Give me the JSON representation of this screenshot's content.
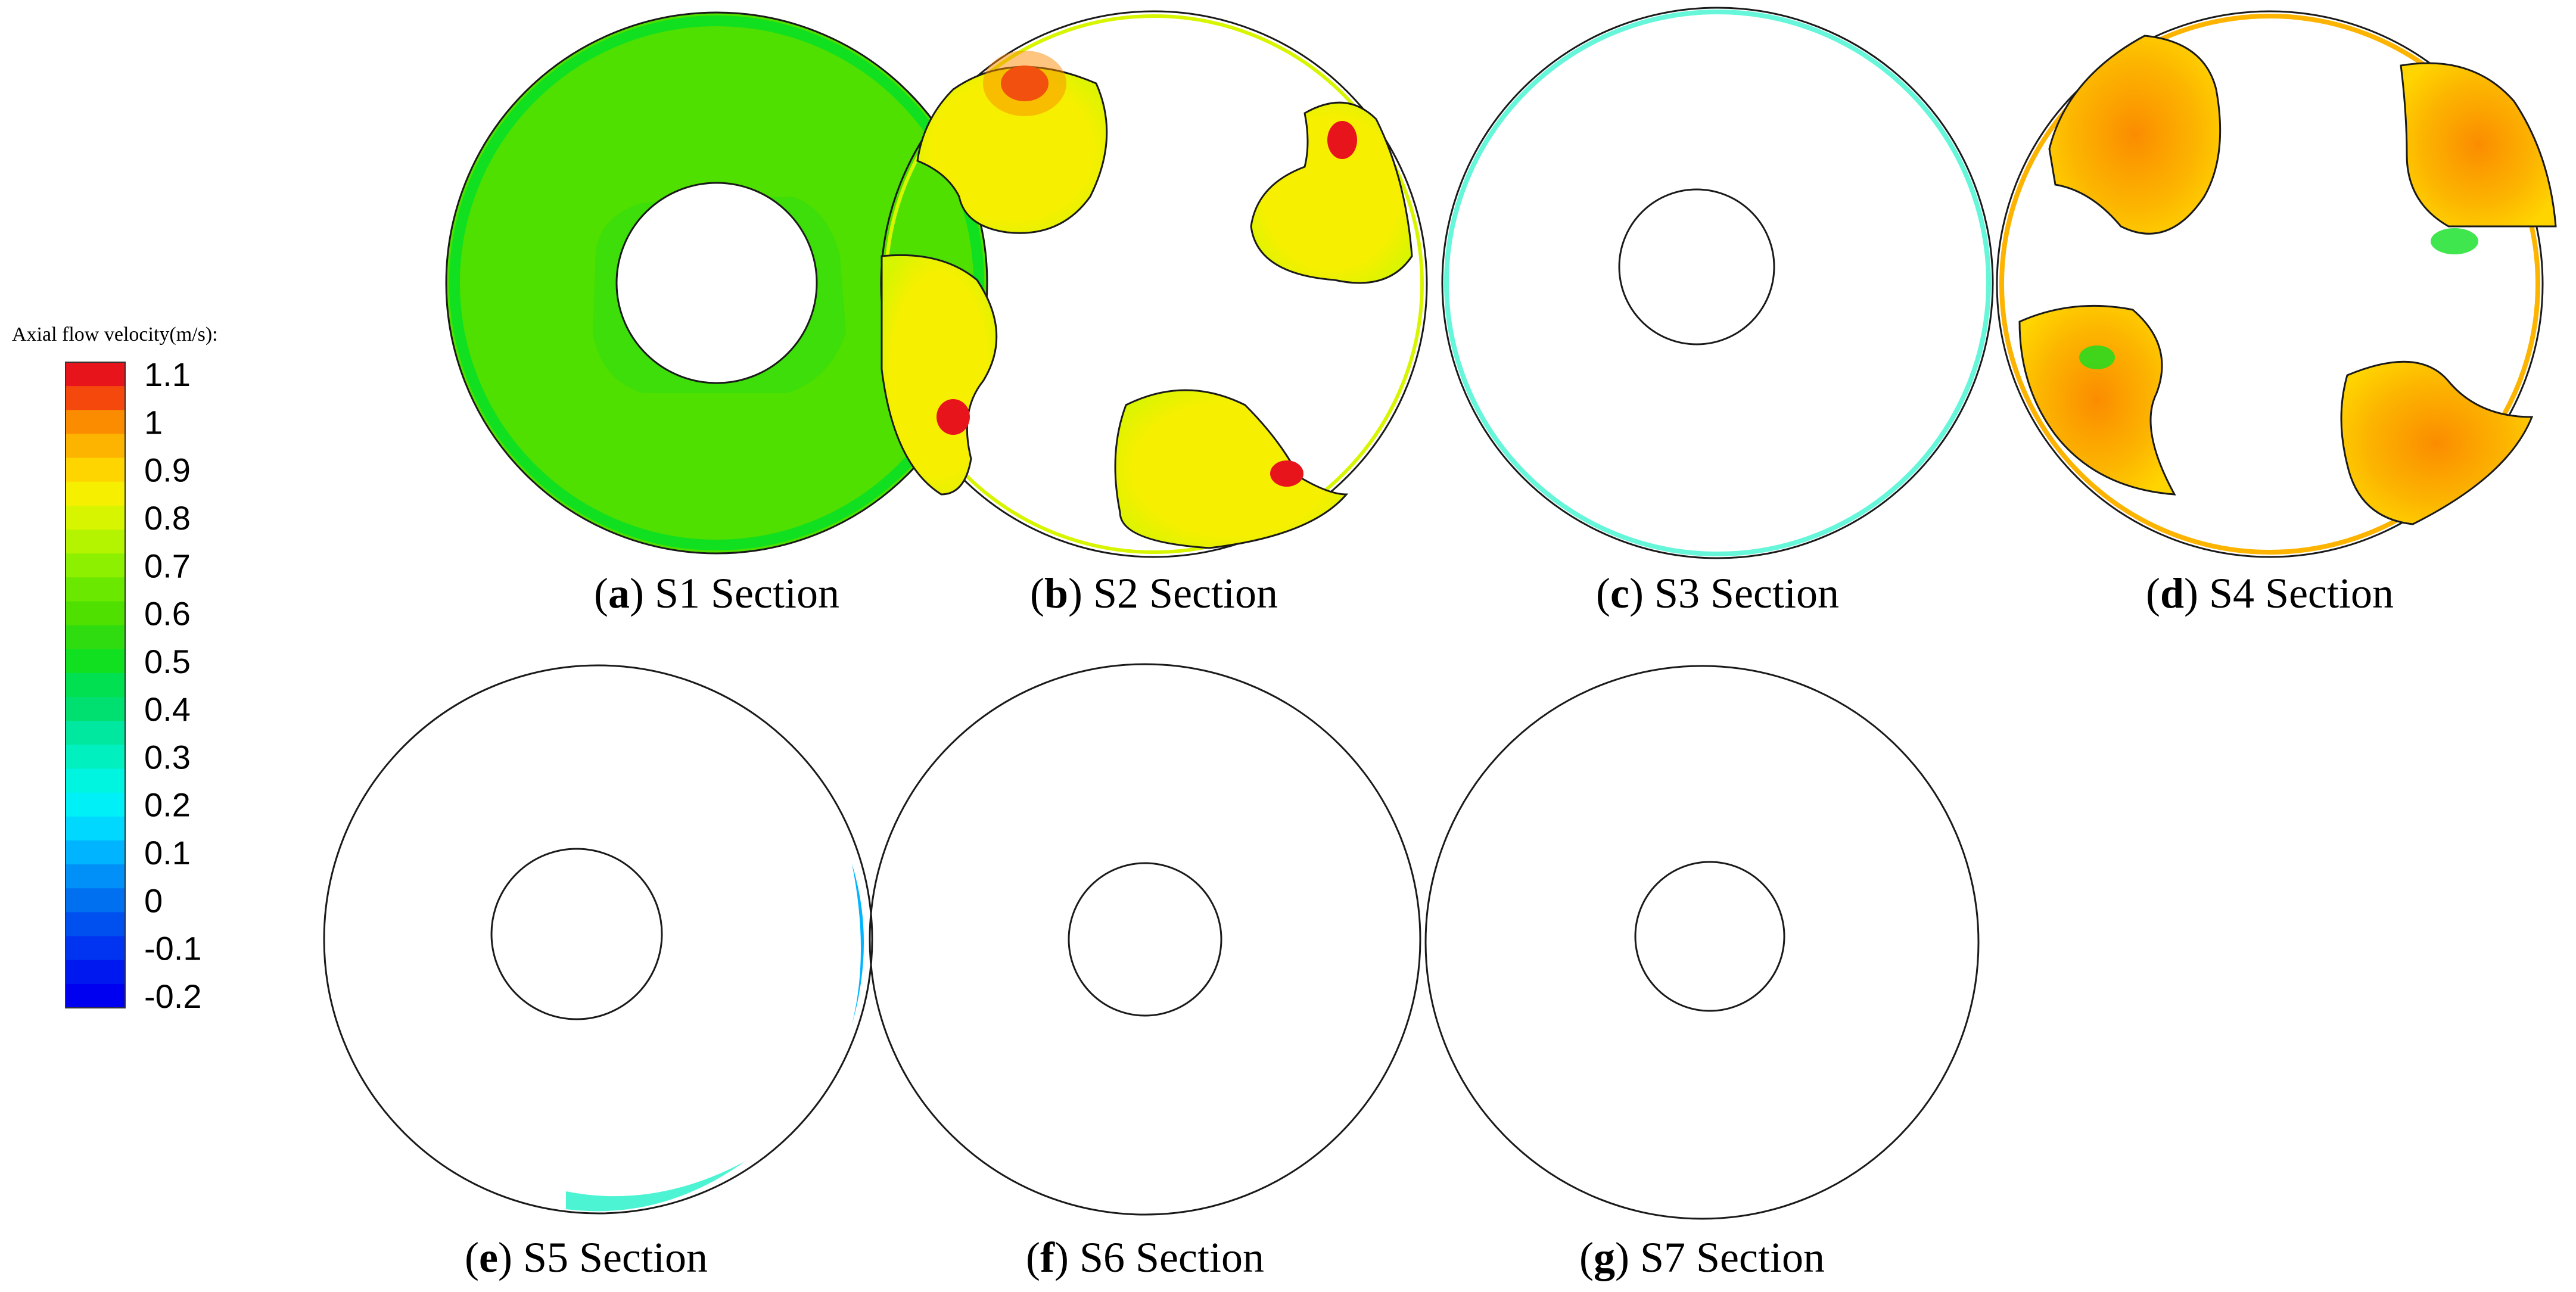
{
  "legend": {
    "title": "Axial flow velocity(m/s):",
    "levels": [
      {
        "label": "1.1",
        "color": "#e8141c"
      },
      {
        "label": "",
        "color": "#f5480d"
      },
      {
        "label": "1",
        "color": "#fb8c00"
      },
      {
        "label": "",
        "color": "#fcb400"
      },
      {
        "label": "0.9",
        "color": "#ffd500"
      },
      {
        "label": "",
        "color": "#f6ef00"
      },
      {
        "label": "0.8",
        "color": "#d8f500"
      },
      {
        "label": "",
        "color": "#b4f400"
      },
      {
        "label": "0.7",
        "color": "#8cf000"
      },
      {
        "label": "",
        "color": "#6ae800"
      },
      {
        "label": "0.6",
        "color": "#4fe000"
      },
      {
        "label": "",
        "color": "#2fdc10"
      },
      {
        "label": "0.5",
        "color": "#10e020"
      },
      {
        "label": "",
        "color": "#00e050"
      },
      {
        "label": "0.4",
        "color": "#00e070"
      },
      {
        "label": "",
        "color": "#00e8a0"
      },
      {
        "label": "0.3",
        "color": "#00f0c0"
      },
      {
        "label": "",
        "color": "#00f5e0"
      },
      {
        "label": "0.2",
        "color": "#00f0f8"
      },
      {
        "label": "",
        "color": "#00d8ff"
      },
      {
        "label": "0.1",
        "color": "#00b4ff"
      },
      {
        "label": "",
        "color": "#0090f8"
      },
      {
        "label": "0",
        "color": "#0070f0"
      },
      {
        "label": "",
        "color": "#0050f0"
      },
      {
        "label": "-0.1",
        "color": "#0034f0"
      },
      {
        "label": "",
        "color": "#0018f0"
      },
      {
        "label": "-0.2",
        "color": "#0000f0"
      }
    ]
  },
  "panels": [
    {
      "letter": "a",
      "caption": " S1 Section"
    },
    {
      "letter": "b",
      "caption": " S2 Section"
    },
    {
      "letter": "c",
      "caption": " S3 Section"
    },
    {
      "letter": "d",
      "caption": " S4 Section"
    },
    {
      "letter": "e",
      "caption": " S5 Section"
    },
    {
      "letter": "f",
      "caption": " S6 Section"
    },
    {
      "letter": "g",
      "caption": " S7 Section"
    }
  ],
  "colors": {
    "green": "#4fe000",
    "green_light": "#6ae800",
    "green_teal": "#10e020",
    "teal": "#00e8a0",
    "cyan": "#00f0f8",
    "blue": "#0018f0",
    "red": "#e8141c",
    "orange": "#fb8c00",
    "orange_light": "#fcb400",
    "yellow": "#f6ef00",
    "yellow_green": "#d8f500"
  }
}
